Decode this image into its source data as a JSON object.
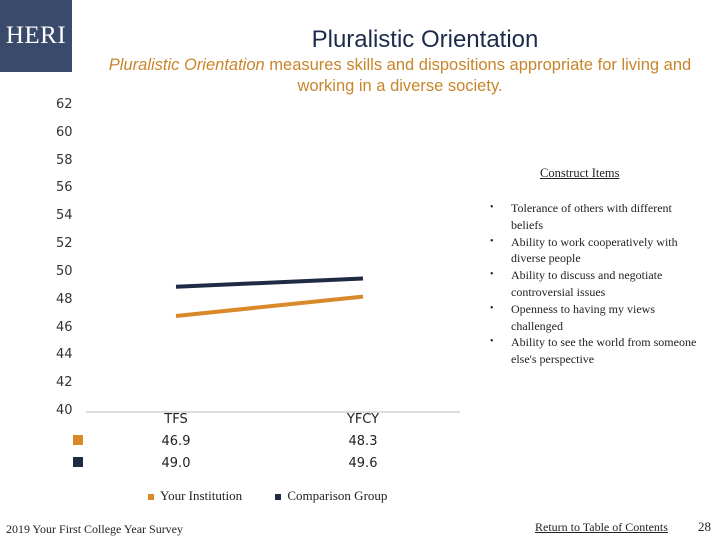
{
  "header": {
    "logo_text": "HERI",
    "title": "Pluralistic Orientation",
    "subtitle_italic": "Pluralistic Orientation",
    "subtitle_rest": " measures skills and dispositions appropriate for living and working in a diverse society."
  },
  "colors": {
    "your_institution": "#d9892a",
    "comparison_group": "#1f2a44",
    "brand": "#3a4a6b"
  },
  "chart_data": {
    "type": "line",
    "categories": [
      "TFS",
      "YFCY"
    ],
    "ylim": [
      40,
      62
    ],
    "yticks": [
      62,
      60,
      58,
      56,
      54,
      52,
      50,
      48,
      46,
      44,
      42,
      40
    ],
    "ytick_labels": [
      "62",
      "60",
      "58",
      "56",
      "54",
      "52",
      "50",
      "48",
      "46",
      "44",
      "42",
      "40"
    ],
    "series": [
      {
        "name": "Your Institution",
        "values": [
          46.9,
          48.3
        ],
        "labels": [
          "46.9",
          "48.3"
        ]
      },
      {
        "name": "Comparison Group",
        "values": [
          49.0,
          49.6
        ],
        "labels": [
          "49.0",
          "49.6"
        ]
      }
    ],
    "legend_position": "bottom",
    "grid": false
  },
  "construct_items": {
    "heading": "Construct Items",
    "bullet": "•",
    "items": [
      "Tolerance of others with different beliefs",
      "Ability to work cooperatively with diverse people",
      "Ability to discuss and negotiate controversial issues",
      "Openness to having my views challenged",
      "Ability to see the world from someone else's perspective"
    ]
  },
  "footer": {
    "survey": "2019 Your First College Year Survey",
    "link": "Return to Table of Contents",
    "page": "28"
  }
}
